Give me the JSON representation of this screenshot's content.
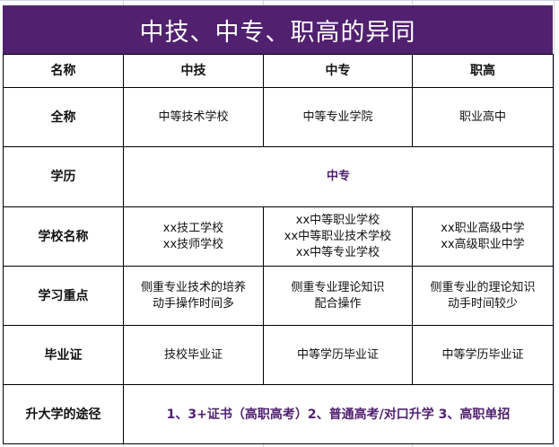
{
  "title": "中技、中专、职高的异同",
  "colors": {
    "title_bg": "#512170",
    "accent_text": "#512170"
  },
  "header": [
    "名称",
    "中技",
    "中专",
    "职高"
  ],
  "rows": [
    {
      "label": "全称",
      "cells": [
        [
          "中等技术学校"
        ],
        [
          "中等专业学院"
        ],
        [
          "职业高中"
        ]
      ]
    },
    {
      "label": "学历",
      "merged": "中专"
    },
    {
      "label": "学校名称",
      "cells": [
        [
          "xx技工学校",
          "xx技师学校"
        ],
        [
          "xx中等职业学校",
          "xx中等职业技术学校",
          "xx中等专业学校"
        ],
        [
          "xx职业高级中学",
          "xx高级职业中学"
        ]
      ]
    },
    {
      "label": "学习重点",
      "cells": [
        [
          "侧重专业技术的培养",
          "动手操作时间多"
        ],
        [
          "侧重专业理论知识",
          "配合操作"
        ],
        [
          "侧重专业的理论知识",
          "动手时间较少"
        ]
      ]
    },
    {
      "label": "毕业证",
      "cells": [
        [
          "技校毕业证"
        ],
        [
          "中等学历毕业证"
        ],
        [
          "中等学历毕业证"
        ]
      ]
    },
    {
      "label": "升大学的途径",
      "merged": "1、3+证书（高职高考）2、普通高考/对口升学 3、高职单招"
    }
  ]
}
